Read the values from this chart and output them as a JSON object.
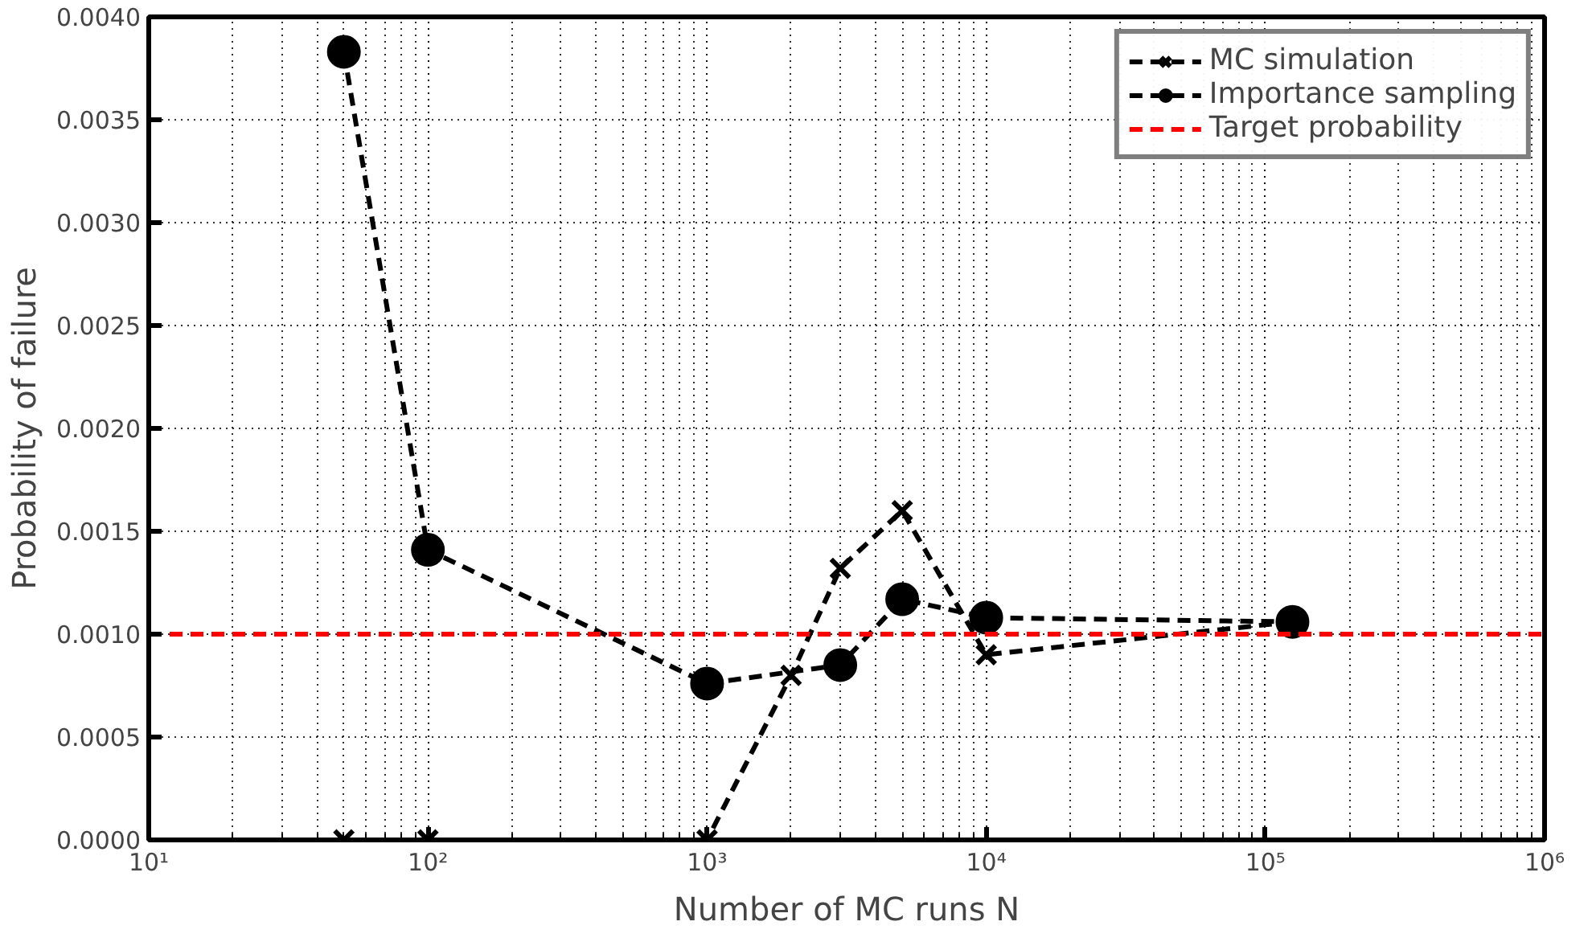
{
  "chart_data": {
    "type": "line",
    "xlabel": "Number of MC runs N",
    "ylabel": "Probability of failure",
    "log": "x",
    "grid": true,
    "legend": "top right",
    "line_style": "dashed",
    "xlim": [
      10,
      1000000
    ],
    "xticks": [
      {
        "value": 10,
        "label": "10¹"
      },
      {
        "value": 100,
        "label": "10²"
      },
      {
        "value": 1000,
        "label": "10³"
      },
      {
        "value": 10000,
        "label": "10⁴"
      },
      {
        "value": 100000,
        "label": "10⁵"
      },
      {
        "value": 1000000,
        "label": "10⁶"
      }
    ],
    "ylim": [
      0,
      0.004
    ],
    "yticks": [
      {
        "value": 0,
        "label": "0.0000"
      },
      {
        "value": 0.0005,
        "label": "0.0005"
      },
      {
        "value": 0.001,
        "label": "0.0010"
      },
      {
        "value": 0.0015,
        "label": "0.0015"
      },
      {
        "value": 0.002,
        "label": "0.0020"
      },
      {
        "value": 0.0025,
        "label": "0.0025"
      },
      {
        "value": 0.003,
        "label": "0.0030"
      },
      {
        "value": 0.0035,
        "label": "0.0035"
      },
      {
        "value": 0.004,
        "label": "0.0040"
      }
    ],
    "series": [
      {
        "name": "MC simulation",
        "color": "#000000",
        "marker": "cross",
        "x": [
          50,
          100,
          1000,
          2000,
          3000,
          5000,
          10000,
          125000
        ],
        "values": [
          0,
          0,
          0,
          0.0008,
          0.00132,
          0.0016,
          0.0009,
          0.00106
        ]
      },
      {
        "name": "Importance sampling",
        "color": "#000000",
        "marker": "circle",
        "x": [
          50,
          100,
          1000,
          3000,
          5000,
          10000,
          125000
        ],
        "values": [
          0.00383,
          0.00141,
          0.00076,
          0.00085,
          0.00117,
          0.00108,
          0.00106
        ]
      }
    ],
    "ref_lines": [
      {
        "axis": "y",
        "value": 0.001,
        "label": "Target probability",
        "color": "#ff0000",
        "line_style": "dashed"
      }
    ]
  }
}
